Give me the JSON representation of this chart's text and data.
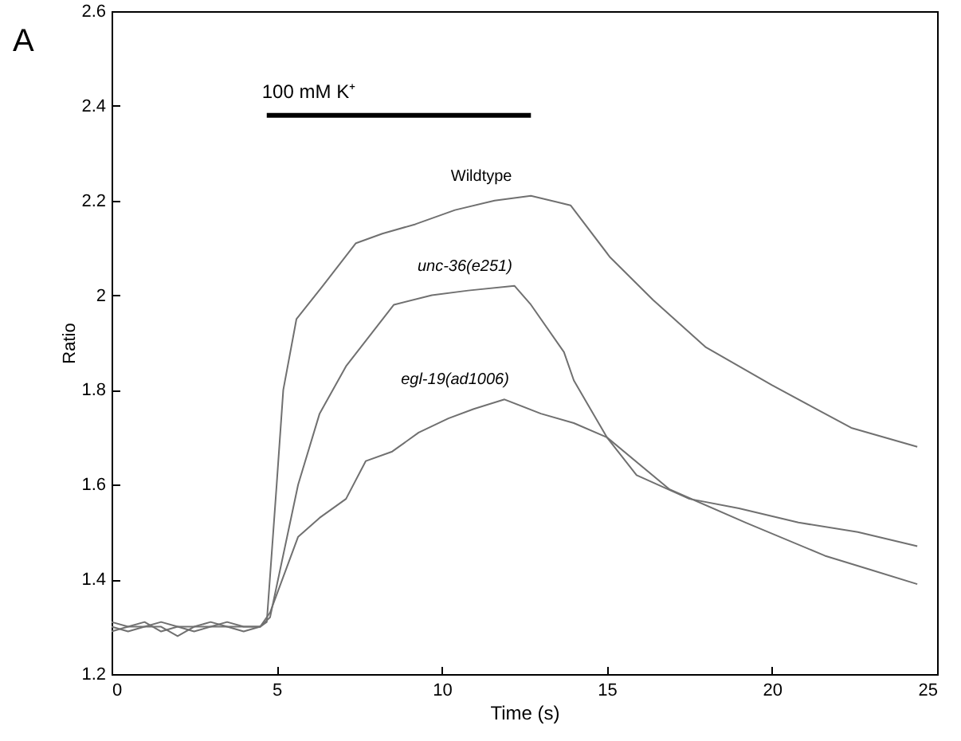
{
  "chart_data": {
    "type": "line",
    "xlabel": "Time (s)",
    "ylabel": "Ratio",
    "annotations": [
      "A"
    ],
    "xlim": [
      0,
      25
    ],
    "xticks": [
      0,
      5,
      10,
      15,
      20,
      25
    ],
    "ylim": [
      1.2,
      2.6
    ],
    "yticks": [
      1.2,
      1.4,
      1.6,
      1.8,
      2,
      2.2,
      2.4,
      2.6
    ],
    "grid": false,
    "series": [
      {
        "name": "100 mM K⁺",
        "color": "#000000",
        "x": [
          4.7,
          12.7
        ],
        "values": [
          2.38,
          2.38
        ]
      },
      {
        "name": "Wildtype",
        "color": "#707070",
        "x": [
          0,
          0.5,
          1,
          1.5,
          2,
          2.5,
          3,
          3.5,
          4,
          4.5,
          4.7,
          5,
          5.2,
          5.6,
          6.4,
          7.4,
          8.2,
          9.2,
          10.4,
          11.6,
          12.7,
          13.9,
          15.1,
          16.4,
          18,
          20,
          22.4,
          24.4
        ],
        "values": [
          1.29,
          1.3,
          1.31,
          1.29,
          1.3,
          1.3,
          1.31,
          1.3,
          1.29,
          1.3,
          1.31,
          1.6,
          1.8,
          1.95,
          2.02,
          2.11,
          2.13,
          2.15,
          2.18,
          2.2,
          2.21,
          2.19,
          2.08,
          1.99,
          1.89,
          1.81,
          1.72,
          1.68
        ]
      },
      {
        "name": "unc-36(e251)",
        "color": "#707070",
        "x": [
          0,
          0.5,
          1,
          1.5,
          2,
          2.5,
          3,
          3.5,
          4,
          4.5,
          4.8,
          5.65,
          6.3,
          7.1,
          8.55,
          9.7,
          10.8,
          12.2,
          12.7,
          13.7,
          14,
          15,
          15.9,
          17.5,
          19,
          20.8,
          22.6,
          24.4
        ],
        "values": [
          1.3,
          1.29,
          1.3,
          1.31,
          1.3,
          1.29,
          1.3,
          1.31,
          1.3,
          1.3,
          1.32,
          1.6,
          1.75,
          1.85,
          1.98,
          2,
          2.01,
          2.02,
          1.98,
          1.88,
          1.82,
          1.7,
          1.62,
          1.57,
          1.55,
          1.52,
          1.5,
          1.47
        ]
      },
      {
        "name": "egl-19(ad1006)",
        "color": "#707070",
        "x": [
          0,
          0.5,
          1,
          1.5,
          2,
          2.5,
          3,
          3.5,
          4,
          4.5,
          4.8,
          5.65,
          6.3,
          7.1,
          7.7,
          8.5,
          9.3,
          10.2,
          10.97,
          11.9,
          13,
          14,
          15,
          16.9,
          19.2,
          21.6,
          23,
          24.4
        ],
        "values": [
          1.31,
          1.3,
          1.3,
          1.3,
          1.28,
          1.3,
          1.3,
          1.3,
          1.3,
          1.3,
          1.33,
          1.49,
          1.53,
          1.57,
          1.65,
          1.67,
          1.71,
          1.74,
          1.76,
          1.78,
          1.75,
          1.73,
          1.7,
          1.59,
          1.52,
          1.45,
          1.42,
          1.39
        ]
      }
    ]
  }
}
